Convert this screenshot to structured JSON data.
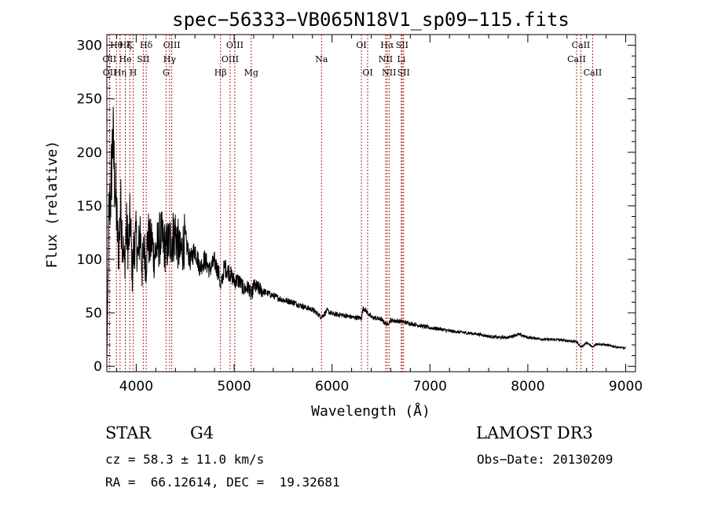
{
  "chart_data": {
    "type": "line",
    "title": "spec−56333−VB065N18V1_sp09−115.fits",
    "xlabel": "Wavelength (Å)",
    "ylabel": "Flux (relative)",
    "xlim": [
      3700,
      9100
    ],
    "ylim": [
      -5,
      310
    ],
    "xticks": [
      4000,
      5000,
      6000,
      7000,
      8000,
      9000
    ],
    "yticks": [
      0,
      50,
      100,
      150,
      200,
      250,
      300
    ],
    "grid": false,
    "line_color": "#000000",
    "marker_color": "#b22222",
    "series": [
      {
        "name": "flux",
        "x": [
          3700,
          3720,
          3740,
          3760,
          3780,
          3800,
          3820,
          3840,
          3860,
          3880,
          3900,
          3920,
          3940,
          3960,
          3980,
          4000,
          4020,
          4040,
          4060,
          4080,
          4100,
          4120,
          4140,
          4160,
          4180,
          4200,
          4250,
          4300,
          4350,
          4400,
          4450,
          4500,
          4550,
          4600,
          4650,
          4700,
          4750,
          4800,
          4850,
          4861,
          4900,
          4950,
          5000,
          5050,
          5100,
          5150,
          5175,
          5200,
          5300,
          5400,
          5500,
          5600,
          5700,
          5800,
          5893,
          5950,
          6000,
          6100,
          6200,
          6300,
          6320,
          6400,
          6500,
          6563,
          6600,
          6700,
          6800,
          6900,
          7000,
          7100,
          7200,
          7300,
          7400,
          7500,
          7600,
          7700,
          7800,
          7900,
          8000,
          8100,
          8200,
          8300,
          8400,
          8500,
          8542,
          8600,
          8662,
          8700,
          8800,
          8900,
          9000
        ],
        "y": [
          5,
          140,
          160,
          215,
          175,
          140,
          105,
          150,
          120,
          95,
          130,
          110,
          140,
          85,
          115,
          120,
          100,
          130,
          90,
          112,
          95,
          123,
          112,
          118,
          103,
          108,
          122,
          110,
          118,
          125,
          104,
          120,
          98,
          110,
          92,
          100,
          90,
          98,
          85,
          72,
          93,
          88,
          80,
          80,
          72,
          74,
          65,
          75,
          70,
          66,
          62,
          60,
          56,
          53,
          46,
          52,
          49,
          48,
          46,
          45,
          55,
          46,
          44,
          39,
          43,
          42,
          40,
          38,
          36,
          35,
          33,
          32,
          31,
          30,
          28,
          27,
          27,
          30,
          27,
          26,
          25,
          25,
          24,
          23,
          18,
          22,
          18,
          21,
          20,
          18,
          17
        ]
      }
    ],
    "lines": [
      {
        "label": "Hθ",
        "x": 3798,
        "row": 0
      },
      {
        "label": "OII",
        "x": 3727,
        "row": 1
      },
      {
        "label": "OII",
        "x": 3729,
        "row": 2
      },
      {
        "label": "Hζ",
        "x": 3889,
        "row": 0
      },
      {
        "label": "He",
        "x": 3889,
        "row": 1
      },
      {
        "label": "Hη",
        "x": 3835,
        "row": 2
      },
      {
        "label": "K",
        "x": 3934,
        "row": 0
      },
      {
        "label": "SII",
        "x": 4072,
        "row": 1
      },
      {
        "label": "H",
        "x": 3969,
        "row": 2
      },
      {
        "label": "Hδ",
        "x": 4102,
        "row": 0
      },
      {
        "label": "OIII",
        "x": 4363,
        "row": 0
      },
      {
        "label": "Hγ",
        "x": 4341,
        "row": 1
      },
      {
        "label": "G",
        "x": 4305,
        "row": 2
      },
      {
        "label": "Hβ",
        "x": 4861,
        "row": 2
      },
      {
        "label": "OIII",
        "x": 5007,
        "row": 0
      },
      {
        "label": "OIII",
        "x": 4959,
        "row": 1
      },
      {
        "label": "Mg",
        "x": 5175,
        "row": 2
      },
      {
        "label": "Na",
        "x": 5893,
        "row": 1
      },
      {
        "label": "OI",
        "x": 6300,
        "row": 0
      },
      {
        "label": "OI",
        "x": 6364,
        "row": 2
      },
      {
        "label": "Hα",
        "x": 6563,
        "row": 0
      },
      {
        "label": "NII",
        "x": 6548,
        "row": 1
      },
      {
        "label": "NII",
        "x": 6583,
        "row": 2
      },
      {
        "label": "SII",
        "x": 6716,
        "row": 0
      },
      {
        "label": "Li",
        "x": 6708,
        "row": 1
      },
      {
        "label": "SII",
        "x": 6731,
        "row": 2
      },
      {
        "label": "CaII",
        "x": 8542,
        "row": 0
      },
      {
        "label": "CaII",
        "x": 8498,
        "row": 1
      },
      {
        "label": "CaII",
        "x": 8662,
        "row": 2
      }
    ]
  },
  "info": {
    "class_label": "STAR",
    "subclass": "G4",
    "survey": "LAMOST DR3",
    "cz": "cz = 58.3 ± 11.0 km/s",
    "obs_date": "Obs−Date: 20130209",
    "coords": "RA =  66.12614, DEC =  19.32681"
  }
}
